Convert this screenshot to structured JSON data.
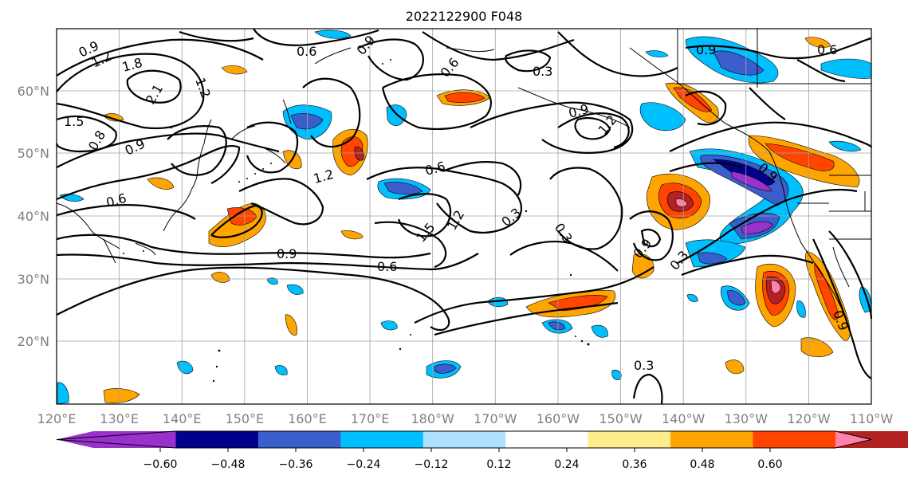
{
  "map": {
    "title": "2022122900 F048",
    "lon_labels": [
      "120°E",
      "130°E",
      "140°E",
      "150°E",
      "160°E",
      "170°E",
      "180°W",
      "170°W",
      "160°W",
      "150°W",
      "140°W",
      "130°W",
      "120°W",
      "110°W"
    ],
    "lat_labels": [
      "60°N",
      "50°N",
      "40°N",
      "30°N",
      "20°N"
    ],
    "contour_labels": [
      "0.9",
      "1.2",
      "1.8",
      "2.1",
      "1.5",
      "0.9",
      "1.2",
      "0.6",
      "0.9",
      "0.6",
      "0.3",
      "0.9",
      "1.2",
      "0.6",
      "1.2",
      "1.5",
      "1.2",
      "0.3",
      "0.3",
      "0.9",
      "0.6",
      "0.9",
      "0.3",
      "0.3",
      "0.9",
      "0.6",
      "0.6",
      "0.9",
      "0.8",
      "0.9"
    ]
  },
  "colorbar": {
    "tick_labels": [
      "−0.60",
      "−0.48",
      "−0.36",
      "−0.24",
      "−0.12",
      "0.12",
      "0.24",
      "0.36",
      "0.48",
      "0.60"
    ],
    "colors": [
      "#9932cc",
      "#00008b",
      "#3a5fcd",
      "#00bfff",
      "#b0e2ff",
      "#ffffff",
      "#ffec8b",
      "#ffa500",
      "#ff4500",
      "#b22222",
      "#ff82ab"
    ]
  }
}
